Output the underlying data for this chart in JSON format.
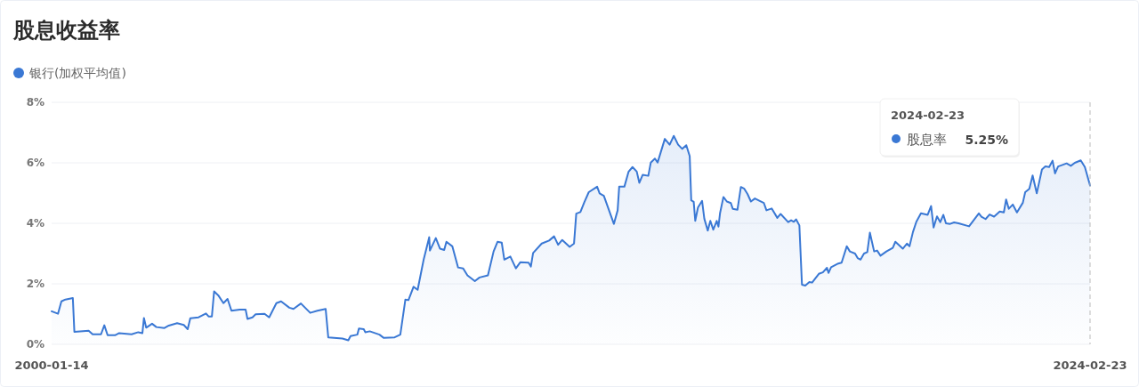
{
  "chart_data": {
    "type": "area",
    "title": "股息收益率",
    "legend": "top left",
    "grid": "y",
    "marker": "none",
    "line_style": "solid",
    "xlim": [
      "2000-01-14",
      "2024-02-23"
    ],
    "xticks": [
      {
        "value": "2000-01-14",
        "label": "2000-01-14"
      },
      {
        "value": "2024-02-23",
        "label": "2024-02-23"
      }
    ],
    "ylim": [
      0,
      8
    ],
    "yticks": [
      {
        "value": 0,
        "label": "0%"
      },
      {
        "value": 2,
        "label": "2%"
      },
      {
        "value": 4,
        "label": "4%"
      },
      {
        "value": 6,
        "label": "6%"
      },
      {
        "value": 8,
        "label": "8%"
      }
    ],
    "ref_lines": [
      {
        "axis": "x",
        "value": "2024-02-23",
        "color": "#bbbbbb",
        "line_style": "dashed"
      }
    ],
    "annotations": [
      "2024-02-23",
      "股息率",
      "5.25%"
    ],
    "x": [
      "2000-01-14",
      "2000-03-08",
      "2000-04-06",
      "2000-05-10",
      "2000-07-12",
      "2000-07-25",
      "2000-11-23",
      "2000-12-27",
      "2001-03-08",
      "2001-04-05",
      "2001-05-03",
      "2001-07-05",
      "2001-08-09",
      "2001-11-22",
      "2002-01-18",
      "2002-02-22",
      "2002-03-07",
      "2002-03-26",
      "2002-05-15",
      "2002-06-20",
      "2002-08-28",
      "2002-10-04",
      "2002-12-13",
      "2003-02-08",
      "2003-03-13",
      "2003-04-04",
      "2003-06-13",
      "2003-08-15",
      "2003-09-06",
      "2003-10-04",
      "2003-10-23",
      "2003-11-27",
      "2004-01-10",
      "2004-02-14",
      "2004-03-18",
      "2004-05-27",
      "2004-07-16",
      "2004-08-01",
      "2004-09-12",
      "2004-10-09",
      "2004-12-24",
      "2005-02-01",
      "2005-04-03",
      "2005-05-13",
      "2005-07-22",
      "2005-08-26",
      "2005-10-28",
      "2006-01-15",
      "2006-03-17",
      "2006-05-26",
      "2006-06-17",
      "2006-10-15",
      "2006-12-04",
      "2006-12-23",
      "2007-02-19",
      "2007-03-04",
      "2007-04-14",
      "2007-04-27",
      "2007-06-04",
      "2007-08-25",
      "2007-10-01",
      "2008-01-01",
      "2008-02-18",
      "2008-04-01",
      "2008-04-27",
      "2008-06-09",
      "2008-07-14",
      "2008-09-03",
      "2008-10-20",
      "2008-10-26",
      "2008-12-15",
      "2009-01-20",
      "2009-02-24",
      "2009-03-15",
      "2009-05-04",
      "2009-06-22",
      "2009-08-04",
      "2009-09-09",
      "2009-11-11",
      "2009-12-21",
      "2010-03-02",
      "2010-04-19",
      "2010-05-23",
      "2010-06-27",
      "2010-07-19",
      "2010-09-08",
      "2010-10-25",
      "2010-12-01",
      "2011-02-10",
      "2011-03-01",
      "2011-03-20",
      "2011-06-01",
      "2011-08-03",
      "2011-09-14",
      "2011-10-18",
      "2011-11-22",
      "2012-01-24",
      "2012-03-01",
      "2012-03-20",
      "2012-04-24",
      "2012-05-28",
      "2012-07-04",
      "2012-09-13",
      "2012-10-04",
      "2012-11-09",
      "2013-02-02",
      "2013-03-06",
      "2013-03-19",
      "2013-05-02",
      "2013-06-06",
      "2013-07-10",
      "2013-08-15",
      "2013-09-06",
      "2013-10-04",
      "2013-11-21",
      "2013-12-12",
      "2014-01-16",
      "2014-02-08",
      "2014-04-10",
      "2014-05-21",
      "2014-06-25",
      "2014-08-01",
      "2014-09-05",
      "2014-10-09",
      "2014-11-07",
      "2014-11-20",
      "2014-12-11",
      "2014-12-24",
      "2015-01-16",
      "2015-02-20",
      "2015-03-11",
      "2015-04-09",
      "2015-05-01",
      "2015-05-26",
      "2015-06-24",
      "2015-07-09",
      "2015-07-22",
      "2015-08-20",
      "2015-09-18",
      "2015-10-22",
      "2015-11-07",
      "2015-12-17",
      "2016-01-15",
      "2016-02-13",
      "2016-03-11",
      "2016-04-09",
      "2016-05-13",
      "2016-06-23",
      "2016-07-28",
      "2016-08-19",
      "2016-10-02",
      "2016-11-19",
      "2016-12-17",
      "2017-02-19",
      "2017-03-16",
      "2017-04-08",
      "2017-04-27",
      "2017-05-25",
      "2017-06-16",
      "2017-07-14",
      "2017-08-18",
      "2017-09-10",
      "2017-11-06",
      "2017-12-10",
      "2018-01-14",
      "2018-01-27",
      "2018-02-18",
      "2018-04-20",
      "2018-05-18",
      "2018-07-01",
      "2018-07-27",
      "2018-09-09",
      "2018-10-01",
      "2018-10-26",
      "2018-11-24",
      "2018-12-22",
      "2019-01-13",
      "2019-02-18",
      "2019-03-15",
      "2019-04-13",
      "2019-06-02",
      "2019-07-26",
      "2019-08-17",
      "2019-10-19",
      "2019-11-23",
      "2019-12-15",
      "2020-01-13",
      "2020-02-11",
      "2020-03-21",
      "2020-05-17",
      "2020-06-15",
      "2020-07-06",
      "2020-08-04",
      "2020-09-01",
      "2020-09-27",
      "2020-10-19",
      "2020-11-23",
      "2020-12-27",
      "2021-02-03",
      "2021-05-03",
      "2021-07-25",
      "2021-08-16",
      "2021-09-20",
      "2021-10-24",
      "2021-12-01",
      "2022-01-18",
      "2022-02-22",
      "2022-03-13",
      "2022-04-05",
      "2022-05-09",
      "2022-06-13",
      "2022-08-02",
      "2022-08-22",
      "2022-09-26",
      "2022-10-24",
      "2022-11-28",
      "2023-01-11",
      "2023-02-09",
      "2023-03-13",
      "2023-04-11",
      "2023-05-02",
      "2023-05-28",
      "2023-07-04",
      "2023-08-08",
      "2023-09-13",
      "2023-10-17",
      "2023-12-06",
      "2024-01-10",
      "2024-02-23"
    ],
    "series": [
      {
        "name": "银行(加权平均值)",
        "color": "#3a78d4",
        "values": [
          1.09,
          1.01,
          1.42,
          1.48,
          1.53,
          0.41,
          0.45,
          0.33,
          0.33,
          0.63,
          0.3,
          0.3,
          0.37,
          0.33,
          0.4,
          0.37,
          0.87,
          0.55,
          0.68,
          0.57,
          0.54,
          0.62,
          0.7,
          0.64,
          0.5,
          0.86,
          0.89,
          1.02,
          0.92,
          0.92,
          1.75,
          1.62,
          1.36,
          1.5,
          1.11,
          1.15,
          1.15,
          0.84,
          0.89,
          0.99,
          1.01,
          0.89,
          1.36,
          1.42,
          1.21,
          1.17,
          1.35,
          1.04,
          1.11,
          1.17,
          0.23,
          0.19,
          0.13,
          0.27,
          0.32,
          0.52,
          0.5,
          0.4,
          0.43,
          0.32,
          0.21,
          0.23,
          0.32,
          1.48,
          1.46,
          1.9,
          1.8,
          2.8,
          3.54,
          3.1,
          3.51,
          3.16,
          3.12,
          3.39,
          3.24,
          2.54,
          2.51,
          2.28,
          2.09,
          2.21,
          2.28,
          3.07,
          3.39,
          3.36,
          2.8,
          2.9,
          2.51,
          2.71,
          2.7,
          2.57,
          3.02,
          3.33,
          3.43,
          3.57,
          3.29,
          3.45,
          3.22,
          3.33,
          4.32,
          4.37,
          4.7,
          5.03,
          5.21,
          4.99,
          4.91,
          3.98,
          4.43,
          5.21,
          5.21,
          5.7,
          5.86,
          5.71,
          5.34,
          5.6,
          5.57,
          6.01,
          6.14,
          6.01,
          6.79,
          6.6,
          6.89,
          6.6,
          6.46,
          6.58,
          6.22,
          4.76,
          4.71,
          4.08,
          4.52,
          4.74,
          4.15,
          3.76,
          4.08,
          3.79,
          4.08,
          3.89,
          4.33,
          4.87,
          4.72,
          4.67,
          4.48,
          4.45,
          5.2,
          5.14,
          4.97,
          4.72,
          4.82,
          4.74,
          4.67,
          4.43,
          4.49,
          4.18,
          4.31,
          4.04,
          4.1,
          4.05,
          4.13,
          3.93,
          1.97,
          1.94,
          2.06,
          2.04,
          2.33,
          2.38,
          2.53,
          2.36,
          2.55,
          2.67,
          2.7,
          3.24,
          3.07,
          3.0,
          2.85,
          2.8,
          3.0,
          3.05,
          3.69,
          3.07,
          3.1,
          2.93,
          3.07,
          3.19,
          3.39,
          3.16,
          3.33,
          3.24,
          3.71,
          4.05,
          4.33,
          4.28,
          4.57,
          3.86,
          4.23,
          4.04,
          4.28,
          4.0,
          3.98,
          4.03,
          4.0,
          3.9,
          4.33,
          4.22,
          4.14,
          4.29,
          4.22,
          4.39,
          4.36,
          4.79,
          4.48,
          4.62,
          4.36,
          4.68,
          5.03,
          5.14,
          5.58,
          4.99,
          5.78,
          5.88,
          5.86,
          6.07,
          5.65,
          5.88,
          5.93,
          5.98,
          5.9,
          6.0,
          6.08,
          5.86,
          5.25
        ]
      }
    ]
  }
}
